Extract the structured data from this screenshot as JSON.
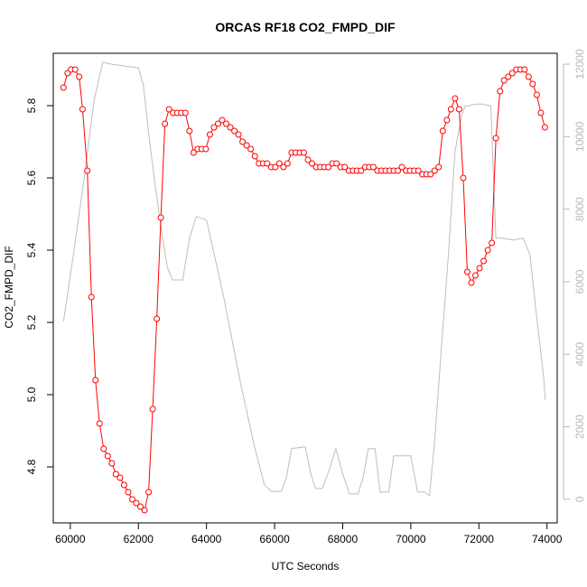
{
  "chart_data": {
    "type": "line",
    "title": "ORCAS RF18 CO2_FMPD_DIF",
    "xlabel": "UTC Seconds",
    "ylabel": "CO2_FMPD_DIF",
    "y2label": "",
    "xlim": [
      59500,
      74300
    ],
    "ylim": [
      4.645,
      5.945
    ],
    "y2lim": [
      -650,
      12300
    ],
    "x_ticks": [
      60000,
      62000,
      64000,
      66000,
      68000,
      70000,
      72000,
      74000
    ],
    "y_ticks": [
      4.8,
      5.0,
      5.2,
      5.4,
      5.6,
      5.8
    ],
    "y2_ticks": [
      0,
      2000,
      4000,
      6000,
      8000,
      10000,
      12000
    ],
    "colors": {
      "co2_series": "#ff0000",
      "altitude_series": "#bebebe",
      "axes": "#000000",
      "right_axis": "#b8b8b8"
    },
    "series": [
      {
        "style": "line-with-open-circles",
        "color": "#ff0000",
        "axis": "left",
        "x": [
          59800,
          59920,
          60020,
          60140,
          60260,
          60360,
          60500,
          60620,
          60740,
          60860,
          60980,
          61100,
          61220,
          61340,
          61460,
          61580,
          61700,
          61820,
          61940,
          62060,
          62180,
          62300,
          62420,
          62540,
          62660,
          62780,
          62900,
          63020,
          63140,
          63260,
          63380,
          63500,
          63620,
          63740,
          63860,
          63980,
          64100,
          64220,
          64340,
          64460,
          64580,
          64700,
          64820,
          64940,
          65060,
          65180,
          65300,
          65420,
          65540,
          65660,
          65780,
          65900,
          66020,
          66140,
          66260,
          66380,
          66500,
          66620,
          66740,
          66860,
          66980,
          67100,
          67220,
          67340,
          67460,
          67580,
          67700,
          67820,
          67940,
          68060,
          68180,
          68300,
          68420,
          68540,
          68660,
          68780,
          68900,
          69020,
          69140,
          69260,
          69380,
          69500,
          69620,
          69740,
          69860,
          69980,
          70100,
          70220,
          70340,
          70460,
          70580,
          70700,
          70820,
          70940,
          71060,
          71180,
          71300,
          71420,
          71540,
          71660,
          71780,
          71900,
          72020,
          72140,
          72260,
          72380,
          72500,
          72620,
          72740,
          72860,
          72980,
          73100,
          73220,
          73340,
          73460,
          73580,
          73700,
          73820,
          73940
        ],
        "y": [
          5.85,
          5.89,
          5.9,
          5.9,
          5.88,
          5.79,
          5.62,
          5.27,
          5.04,
          4.92,
          4.85,
          4.83,
          4.81,
          4.78,
          4.77,
          4.75,
          4.73,
          4.71,
          4.7,
          4.69,
          4.68,
          4.73,
          4.96,
          5.21,
          5.49,
          5.75,
          5.79,
          5.78,
          5.78,
          5.78,
          5.78,
          5.73,
          5.67,
          5.68,
          5.68,
          5.68,
          5.72,
          5.74,
          5.75,
          5.76,
          5.75,
          5.74,
          5.73,
          5.72,
          5.7,
          5.69,
          5.68,
          5.66,
          5.64,
          5.64,
          5.64,
          5.63,
          5.63,
          5.64,
          5.63,
          5.64,
          5.67,
          5.67,
          5.67,
          5.67,
          5.65,
          5.64,
          5.63,
          5.63,
          5.63,
          5.63,
          5.64,
          5.64,
          5.63,
          5.63,
          5.62,
          5.62,
          5.62,
          5.62,
          5.63,
          5.63,
          5.63,
          5.62,
          5.62,
          5.62,
          5.62,
          5.62,
          5.62,
          5.63,
          5.62,
          5.62,
          5.62,
          5.62,
          5.61,
          5.61,
          5.61,
          5.62,
          5.63,
          5.73,
          5.76,
          5.79,
          5.82,
          5.79,
          5.6,
          5.34,
          5.31,
          5.33,
          5.35,
          5.37,
          5.4,
          5.42,
          5.71,
          5.84,
          5.87,
          5.88,
          5.89,
          5.9,
          5.9,
          5.9,
          5.88,
          5.86,
          5.83,
          5.78,
          5.74
        ]
      },
      {
        "style": "line",
        "color": "#bebebe",
        "axis": "right",
        "x": [
          59800,
          60100,
          60400,
          60700,
          60950,
          61200,
          61600,
          62000,
          62150,
          62300,
          62500,
          62700,
          62850,
          63000,
          63300,
          63500,
          63700,
          64000,
          64500,
          65000,
          65400,
          65700,
          65900,
          66200,
          66350,
          66500,
          66900,
          67050,
          67200,
          67400,
          67600,
          67800,
          68000,
          68200,
          68450,
          68600,
          68750,
          68950,
          69100,
          69350,
          69500,
          69750,
          70000,
          70200,
          70400,
          70550,
          70700,
          70900,
          71100,
          71300,
          71500,
          71600,
          71700,
          71900,
          72100,
          72350,
          72500,
          72700,
          73000,
          73300,
          73500,
          73700,
          73900,
          73950
        ],
        "y": [
          4900,
          6800,
          8800,
          11000,
          12050,
          12000,
          11950,
          11900,
          11400,
          10100,
          8600,
          7300,
          6400,
          6050,
          6050,
          7200,
          7800,
          7700,
          5600,
          3200,
          1500,
          400,
          220,
          220,
          600,
          1400,
          1450,
          750,
          300,
          300,
          800,
          1400,
          700,
          150,
          150,
          600,
          1400,
          1400,
          200,
          200,
          1200,
          1200,
          1200,
          200,
          200,
          100,
          1600,
          4200,
          6700,
          9600,
          10600,
          10850,
          10850,
          10900,
          10900,
          10850,
          7200,
          7200,
          7150,
          7200,
          6750,
          5000,
          3400,
          2750
        ]
      }
    ]
  }
}
